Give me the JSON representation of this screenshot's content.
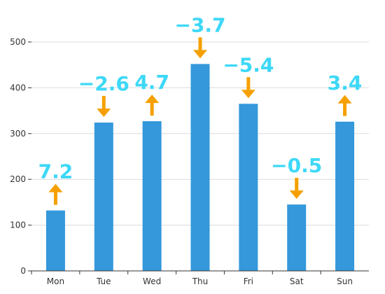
{
  "chart_data": {
    "type": "bar",
    "categories": [
      "Mon",
      "Tue",
      "Wed",
      "Thu",
      "Fri",
      "Sat",
      "Sun"
    ],
    "values": [
      132,
      324,
      327,
      452,
      365,
      145,
      326
    ],
    "changes": [
      "7.2",
      "−2.6",
      "4.7",
      "−3.7",
      "−5.4",
      "−0.5",
      "3.4"
    ],
    "change_direction": [
      "up",
      "down",
      "up",
      "down",
      "down",
      "down",
      "up"
    ],
    "ylim": [
      0,
      500
    ],
    "yticks": [
      0,
      100,
      200,
      300,
      400,
      500
    ],
    "ytick_labels": [
      "0",
      "100",
      "200",
      "300",
      "400",
      "500"
    ],
    "grid": true,
    "colors": {
      "bar": "#3498db",
      "label": "#3dd8f7",
      "arrow": "#f5a000"
    }
  }
}
